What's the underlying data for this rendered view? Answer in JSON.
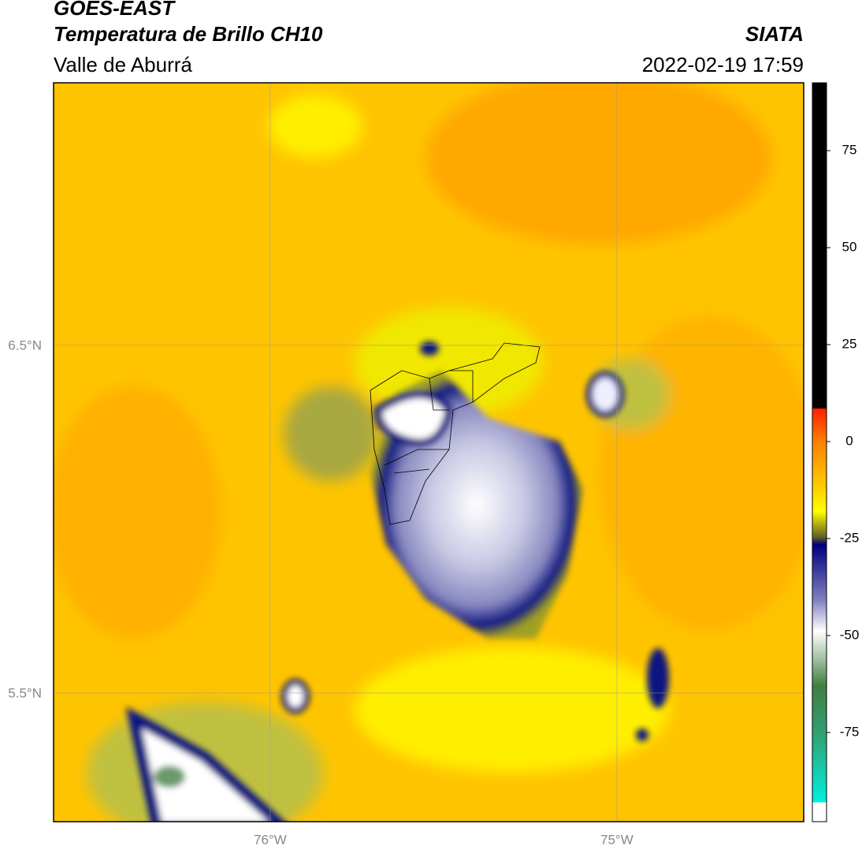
{
  "header": {
    "title": "GOES-EAST",
    "subtitle": "Temperatura de Brillo CH10",
    "region": "Valle de Aburrá",
    "source": "SIATA",
    "datetime": "2022-02-19 17:59"
  },
  "map": {
    "xlim": [
      -76.625,
      -74.461
    ],
    "ylim": [
      5.13,
      7.255
    ],
    "xticks": [
      {
        "value": -76,
        "label": "76°W"
      },
      {
        "value": -75,
        "label": "75°W"
      }
    ],
    "yticks": [
      {
        "value": 6.5,
        "label": "6.5°N"
      },
      {
        "value": 5.5,
        "label": "5.5°N"
      }
    ]
  },
  "colorbar": {
    "lim": [
      -98,
      92.5
    ],
    "ticks": [
      75,
      50,
      25,
      0,
      -25,
      -50,
      -75
    ]
  }
}
